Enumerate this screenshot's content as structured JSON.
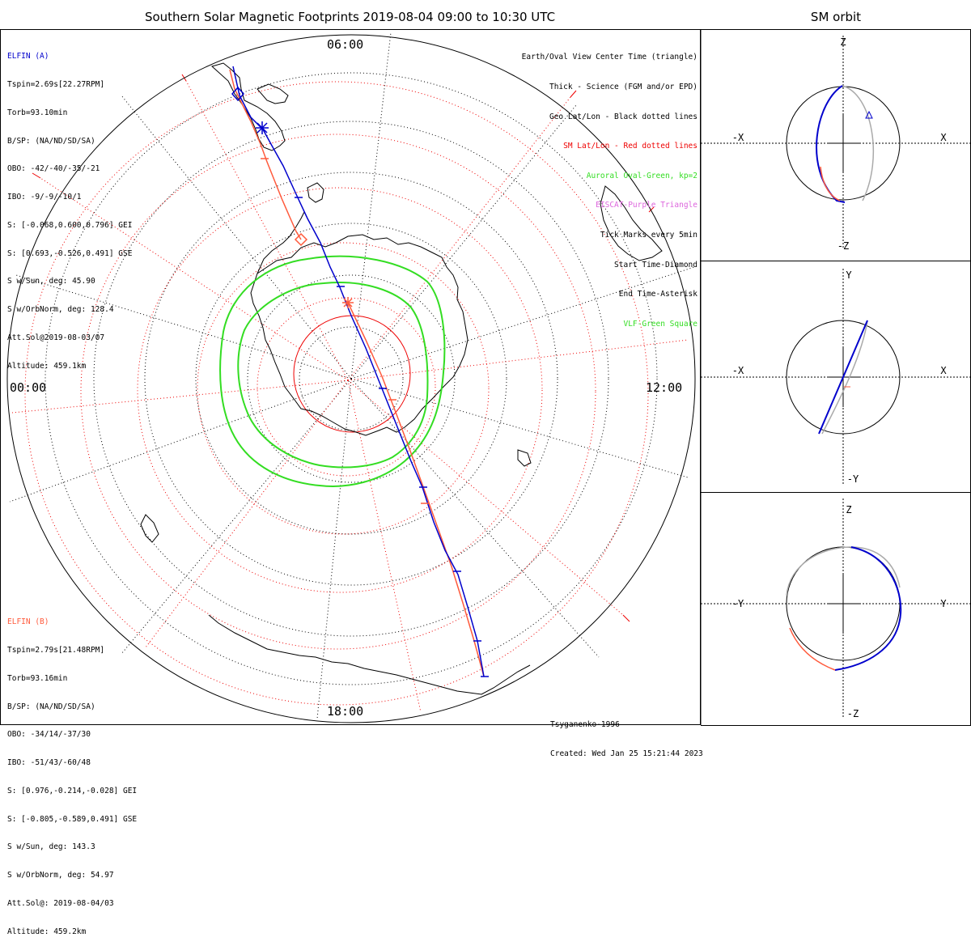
{
  "main_title": "Southern Solar Magnetic Footprints 2019-08-04 09:00 to 10:30 UTC",
  "orbit_title": "SM orbit",
  "mlt_labels": {
    "top": "06:00",
    "left": "00:00",
    "right": "12:00",
    "bottom": "18:00"
  },
  "elfin_a": {
    "name": "ELFIN (A)",
    "color": "#0000cc",
    "lines": [
      "Tspin=2.69s[22.27RPM]",
      "Torb=93.10min",
      "B/SP: (NA/ND/SD/SA)",
      "OBO: -42/-40/-35/-21",
      "IBO: -9/-9/-10/1",
      "S: [-0.068,0.600,0.796] GEI",
      "S: [0.693,-0.526,0.491] GSE",
      "S w/Sun, deg: 45.90",
      "S w/OrbNorm, deg: 128.4",
      "Att.Sol@2019-08-03/07",
      "Altitude: 459.1km"
    ]
  },
  "elfin_b": {
    "name": "ELFIN (B)",
    "color": "#ff5a3c",
    "lines": [
      "Tspin=2.79s[21.48RPM]",
      "Torb=93.16min",
      "B/SP: (NA/ND/SD/SA)",
      "OBO: -34/14/-37/30",
      "IBO: -51/43/-60/48",
      "S: [0.976,-0.214,-0.028] GEI",
      "S: [-0.805,-0.589,0.491] GSE",
      "S w/Sun, deg: 143.3",
      "S w/OrbNorm, deg: 54.97",
      "Att.Sol@: 2019-08-04/03",
      "Altitude: 459.2km"
    ]
  },
  "legend": [
    {
      "text": "Earth/Oval View Center Time (triangle)",
      "color": "#000000"
    },
    {
      "text": "Thick - Science (FGM and/or EPD)",
      "color": "#000000"
    },
    {
      "text": "Geo Lat/Lon - Black dotted lines",
      "color": "#000000"
    },
    {
      "text": "SM Lat/Lon - Red dotted lines",
      "color": "#ee0000"
    },
    {
      "text": "Auroral Oval-Green, kp=2",
      "color": "#33dd22"
    },
    {
      "text": "EISCAT-Purple Triangle",
      "color": "#dd66dd"
    },
    {
      "text": "Tick Marks every 5min",
      "color": "#000000"
    },
    {
      "text": "Start Time-Diamond",
      "color": "#000000"
    },
    {
      "text": "End Time-Asterisk",
      "color": "#000000"
    },
    {
      "text": "VLF-Green Square",
      "color": "#33dd22"
    }
  ],
  "credit": {
    "model": "Tsyganenko-1996",
    "created": "Created: Wed Jan 25 15:21:44 2023"
  },
  "orbit_panels": [
    {
      "name": "xz",
      "top": "Z",
      "bottom": "-Z",
      "left": "-X",
      "right": "X"
    },
    {
      "name": "xy",
      "top": "Y",
      "bottom": "-Y",
      "left": "-X",
      "right": "X"
    },
    {
      "name": "yz",
      "top": "Z",
      "bottom": "-Z",
      "left": "-Y",
      "right": "Y"
    }
  ],
  "colors": {
    "track_a": "#0000cc",
    "track_b": "#ff5a3c",
    "oval": "#33dd22",
    "sm_grid": "#ee0000",
    "geo_grid": "#000000",
    "orbit_gray": "#aaaaaa"
  }
}
